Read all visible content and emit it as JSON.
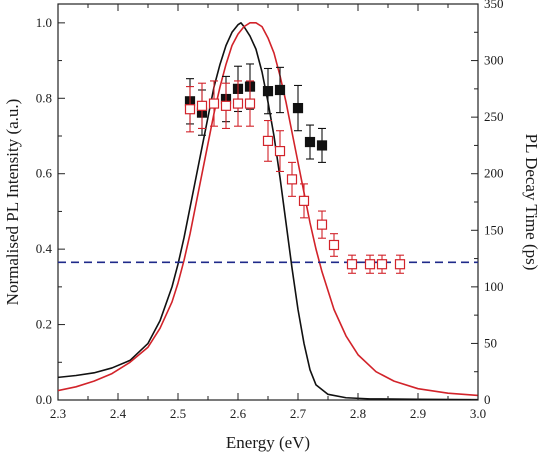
{
  "chart_data": {
    "type": "line",
    "xlabel": "Energy (eV)",
    "ylabel": "Normalised PL Intensity (a.u.)",
    "y2label": "PL Decay Time (ps)",
    "xlim": [
      2.3,
      3.0
    ],
    "ylim": [
      0.0,
      1.05
    ],
    "y2lim": [
      0,
      350
    ],
    "xticks": [
      "2.3",
      "2.4",
      "2.5",
      "2.6",
      "2.7",
      "2.8",
      "2.9",
      "3.0"
    ],
    "yticks": [
      "0.0",
      "0.2",
      "0.4",
      "0.6",
      "0.8",
      "1.0"
    ],
    "y2ticks": [
      "0",
      "50",
      "100",
      "150",
      "200",
      "250",
      "300",
      "350"
    ],
    "grid": false,
    "colors": {
      "black": "#111111",
      "red": "#d2232a",
      "blue": "#1f2a8a"
    },
    "series": [
      {
        "kind": "line",
        "color": "black",
        "axis": "left",
        "x": [
          2.3,
          2.33,
          2.36,
          2.39,
          2.42,
          2.45,
          2.47,
          2.49,
          2.5,
          2.51,
          2.52,
          2.53,
          2.54,
          2.55,
          2.56,
          2.57,
          2.58,
          2.59,
          2.6,
          2.605,
          2.61,
          2.62,
          2.63,
          2.64,
          2.65,
          2.66,
          2.67,
          2.68,
          2.69,
          2.7,
          2.71,
          2.72,
          2.73,
          2.75,
          2.78,
          2.82,
          2.9,
          3.0
        ],
        "y": [
          0.06,
          0.065,
          0.072,
          0.085,
          0.105,
          0.15,
          0.21,
          0.3,
          0.36,
          0.43,
          0.51,
          0.59,
          0.67,
          0.75,
          0.83,
          0.89,
          0.94,
          0.975,
          0.995,
          1.0,
          0.99,
          0.965,
          0.93,
          0.87,
          0.79,
          0.7,
          0.59,
          0.47,
          0.35,
          0.24,
          0.15,
          0.08,
          0.04,
          0.015,
          0.006,
          0.003,
          0.002,
          0.001
        ]
      },
      {
        "kind": "line",
        "color": "red",
        "axis": "left",
        "x": [
          2.3,
          2.33,
          2.36,
          2.39,
          2.42,
          2.45,
          2.47,
          2.49,
          2.5,
          2.51,
          2.52,
          2.53,
          2.54,
          2.55,
          2.56,
          2.57,
          2.58,
          2.59,
          2.6,
          2.61,
          2.62,
          2.63,
          2.64,
          2.65,
          2.66,
          2.67,
          2.68,
          2.69,
          2.7,
          2.71,
          2.72,
          2.73,
          2.74,
          2.75,
          2.76,
          2.78,
          2.8,
          2.83,
          2.86,
          2.9,
          2.95,
          3.0
        ],
        "y": [
          0.025,
          0.035,
          0.05,
          0.07,
          0.1,
          0.14,
          0.19,
          0.26,
          0.31,
          0.37,
          0.44,
          0.52,
          0.6,
          0.68,
          0.76,
          0.83,
          0.89,
          0.94,
          0.97,
          0.99,
          1.0,
          1.0,
          0.99,
          0.96,
          0.92,
          0.86,
          0.79,
          0.71,
          0.63,
          0.55,
          0.47,
          0.4,
          0.34,
          0.29,
          0.24,
          0.17,
          0.12,
          0.075,
          0.05,
          0.03,
          0.018,
          0.012
        ]
      },
      {
        "kind": "hline",
        "color": "blue",
        "axis": "left",
        "y": 0.365,
        "dashed": true
      },
      {
        "kind": "markers",
        "marker": "filled-square",
        "color": "black",
        "axis": "right",
        "x": [
          2.52,
          2.54,
          2.58,
          2.6,
          2.62,
          2.65,
          2.67,
          2.7,
          2.72,
          2.74
        ],
        "y": [
          264,
          254,
          266,
          275,
          277,
          273,
          274,
          258,
          228,
          225
        ],
        "err": [
          20,
          20,
          20,
          20,
          20,
          20,
          20,
          20,
          15,
          15
        ]
      },
      {
        "kind": "markers",
        "marker": "open-square",
        "color": "red",
        "axis": "right",
        "x": [
          2.52,
          2.54,
          2.56,
          2.58,
          2.6,
          2.62,
          2.65,
          2.67,
          2.69,
          2.71,
          2.74,
          2.76,
          2.79,
          2.82,
          2.84,
          2.87
        ],
        "y": [
          257,
          260,
          262,
          260,
          262,
          262,
          229,
          220,
          195,
          176,
          155,
          137,
          120,
          120,
          120,
          120
        ],
        "err": [
          20,
          20,
          20,
          20,
          20,
          20,
          18,
          18,
          15,
          15,
          12,
          10,
          8,
          8,
          8,
          8
        ]
      }
    ]
  }
}
